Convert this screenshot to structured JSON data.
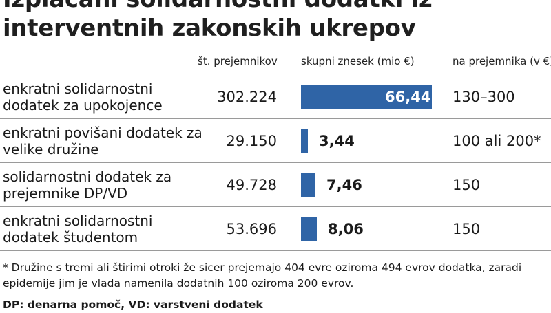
{
  "title": "Izplačani solidarnostni dodatki iz interventnih zakonskih ukrepov",
  "columns": {
    "count": "št. prejemnikov",
    "total": "skupni znesek (mio €)",
    "per": "na prejemnika (v €)"
  },
  "rows": [
    {
      "label": "enkratni solidarnostni dodatek za upokojence",
      "count": "302.224",
      "total": "66,44",
      "per": "130–300"
    },
    {
      "label": "enkratni povišani dodatek za velike družine",
      "count": "29.150",
      "total": "3,44",
      "per": "100 ali 200*"
    },
    {
      "label": "solidarnostni dodatek za prejemnike DP/VD",
      "count": "49.728",
      "total": "7,46",
      "per": "150"
    },
    {
      "label": "enkratni solidarnostni dodatek študentom",
      "count": "53.696",
      "total": "8,06",
      "per": "150"
    }
  ],
  "footnote": "* Družine s tremi ali štirimi otroki že sicer prejemajo 404 evre oziroma 494 evrov dodatka, zaradi epidemije jim je vlada namenila dodatnih 100 oziroma 200 evrov.",
  "abbreviations": "DP: denarna pomoč, VD: varstveni dodatek",
  "colors": {
    "bar": "#2f64a6"
  },
  "chart_data": {
    "type": "table",
    "title": "Izplačani solidarnostni dodatki iz interventnih zakonskih ukrepov",
    "categories": [
      "enkratni solidarnostni dodatek za upokojence",
      "enkratni povišani dodatek za velike družine",
      "solidarnostni dodatek za prejemnike DP/VD",
      "enkratni solidarnostni dodatek študentom"
    ],
    "series": [
      {
        "name": "št. prejemnikov",
        "values": [
          302224,
          29150,
          49728,
          53696
        ]
      },
      {
        "name": "skupni znesek (mio €)",
        "values": [
          66.44,
          3.44,
          7.46,
          8.06
        ]
      },
      {
        "name": "na prejemnika (v €)",
        "values": [
          "130–300",
          "100 ali 200*",
          "150",
          "150"
        ]
      }
    ],
    "bar_series": "skupni znesek (mio €)",
    "xlim": [
      0,
      66.44
    ],
    "grid": false
  }
}
